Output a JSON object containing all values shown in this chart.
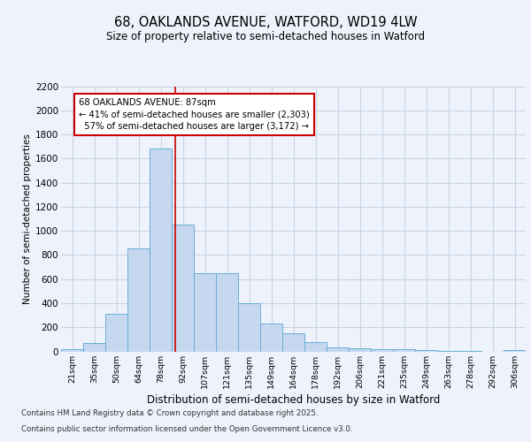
{
  "title1": "68, OAKLANDS AVENUE, WATFORD, WD19 4LW",
  "title2": "Size of property relative to semi-detached houses in Watford",
  "xlabel": "Distribution of semi-detached houses by size in Watford",
  "ylabel": "Number of semi-detached properties",
  "categories": [
    "21sqm",
    "35sqm",
    "50sqm",
    "64sqm",
    "78sqm",
    "92sqm",
    "107sqm",
    "121sqm",
    "135sqm",
    "149sqm",
    "164sqm",
    "178sqm",
    "192sqm",
    "206sqm",
    "221sqm",
    "235sqm",
    "249sqm",
    "263sqm",
    "278sqm",
    "292sqm",
    "306sqm"
  ],
  "values": [
    15,
    70,
    310,
    855,
    1680,
    1050,
    650,
    650,
    400,
    230,
    150,
    80,
    30,
    25,
    20,
    15,
    10,
    5,
    5,
    0,
    10
  ],
  "bar_color": "#c5d8f0",
  "bar_edge_color": "#6aaed6",
  "red_line_index": 4.65,
  "property_label": "68 OAKLANDS AVENUE: 87sqm",
  "smaller_pct": "41%",
  "smaller_n": "2,303",
  "larger_pct": "57%",
  "larger_n": "3,172",
  "annotation_box_color": "#cc0000",
  "footer1": "Contains HM Land Registry data © Crown copyright and database right 2025.",
  "footer2": "Contains public sector information licensed under the Open Government Licence v3.0.",
  "ylim_max": 2200,
  "yticks": [
    0,
    200,
    400,
    600,
    800,
    1000,
    1200,
    1400,
    1600,
    1800,
    2000,
    2200
  ],
  "background_color": "#eef2fb",
  "plot_bg_color": "#eef2fb",
  "grid_color": "#c8d4e8"
}
